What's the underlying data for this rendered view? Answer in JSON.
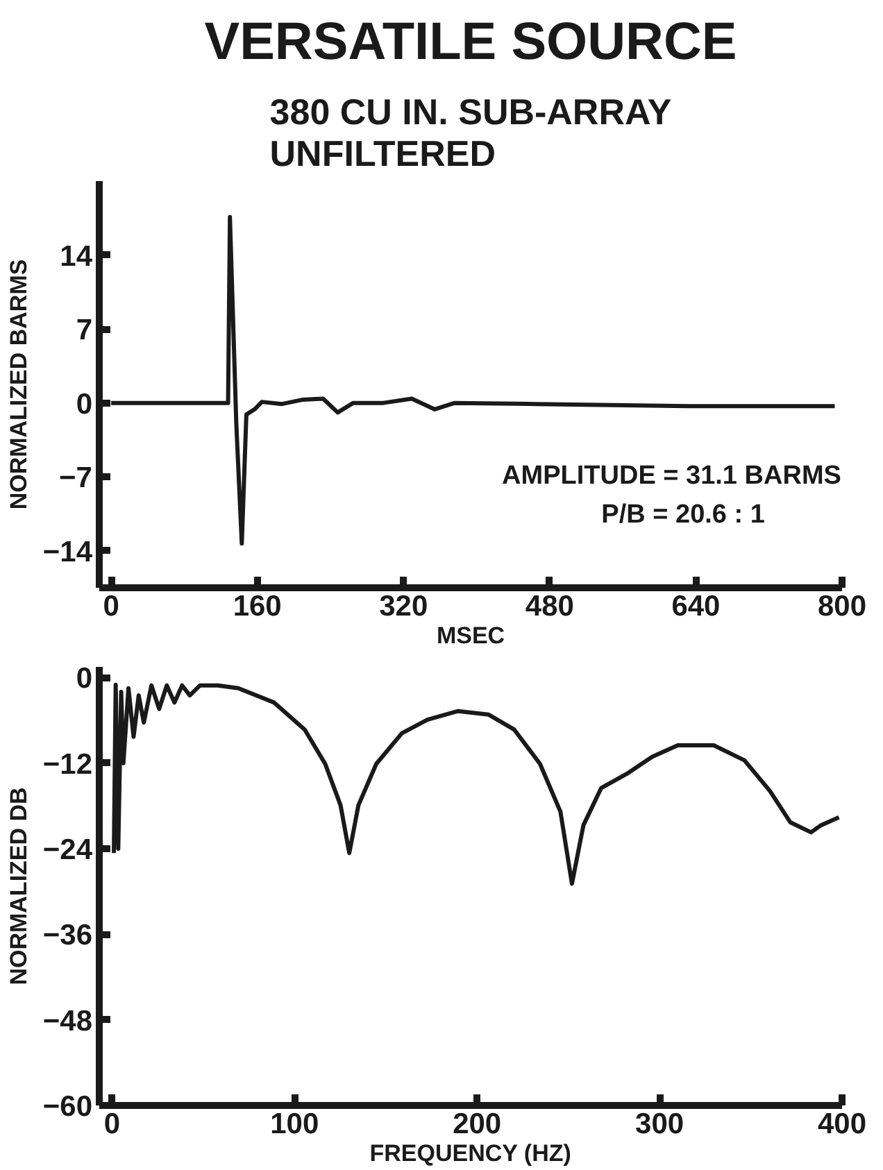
{
  "chart_data": [
    {
      "type": "line",
      "title": "VERSATILE SOURCE",
      "subtitle": "380 CU IN. SUB-ARRAY\nUNFILTERED",
      "xlabel": "MSEC",
      "ylabel": "NORMALIZED BARMS",
      "x": [
        0,
        128,
        130,
        137,
        143,
        148,
        157,
        165,
        187,
        209,
        232,
        248,
        265,
        298,
        329,
        354,
        376,
        465,
        632,
        792
      ],
      "series": [
        {
          "color": "#1a1a1a",
          "values": [
            0,
            0,
            17.6,
            -2,
            -13.3,
            -1.1,
            -0.6,
            0.1,
            -0.1,
            0.3,
            0.4,
            -0.9,
            0,
            0,
            0.4,
            -0.6,
            0,
            -0.1,
            -0.3,
            -0.3
          ]
        }
      ],
      "xlim": [
        -13,
        800
      ],
      "ylim": [
        -17.5,
        21
      ],
      "xticks": [
        0,
        160,
        320,
        480,
        640,
        800
      ],
      "yticks": [
        {
          "value": -14,
          "label": "−14"
        },
        {
          "value": -7,
          "label": "−7"
        },
        0,
        7,
        14
      ],
      "annotations": [
        "AMPLITUDE  =  31.1 BARMS",
        "P/B  =  20.6 : 1"
      ],
      "grid": false
    },
    {
      "type": "line",
      "xlabel": "FREQUENCY (HZ)",
      "ylabel": "NORMALIZED DB",
      "x": [
        1,
        2,
        3.4,
        5,
        6.2,
        9,
        11.8,
        14.6,
        17.4,
        21.6,
        25.8,
        30,
        34.2,
        38.4,
        42.6,
        48.2,
        58,
        69.2,
        88.8,
        105.6,
        116.8,
        125.2,
        130,
        135,
        144.8,
        158.8,
        172.8,
        189.6,
        206.4,
        220.4,
        234.5,
        245.7,
        252,
        258.3,
        268,
        282,
        296,
        310,
        329.7,
        346.5,
        360.5,
        371.7,
        383,
        388.5,
        398.3
      ],
      "series": [
        {
          "color": "#1a1a1a",
          "values": [
            -24.6,
            -1,
            -24,
            -2,
            -12,
            -1.5,
            -8.3,
            -2.5,
            -6.3,
            -1.1,
            -4.4,
            -1.1,
            -3.5,
            -1.1,
            -2.5,
            -1.1,
            -1.1,
            -1.5,
            -3.5,
            -7.3,
            -12.1,
            -17.9,
            -24.6,
            -17.9,
            -12.1,
            -7.8,
            -5.9,
            -4.7,
            -5.2,
            -7.3,
            -12.1,
            -18.8,
            -28.9,
            -20.7,
            -15.5,
            -13.5,
            -11.1,
            -9.5,
            -9.5,
            -11.6,
            -15.9,
            -20.3,
            -21.7,
            -20.7,
            -19.6
          ]
        }
      ],
      "xlim": [
        -7,
        400
      ],
      "ylim": [
        -60,
        1.5
      ],
      "xticks": [
        0,
        100,
        200,
        300,
        400
      ],
      "yticks": [
        0,
        {
          "value": -12,
          "label": "−12"
        },
        {
          "value": -24,
          "label": "−24"
        },
        {
          "value": -36,
          "label": "−36"
        },
        {
          "value": -48,
          "label": "−48"
        },
        {
          "value": -60,
          "label": "−60"
        }
      ],
      "grid": false
    }
  ]
}
